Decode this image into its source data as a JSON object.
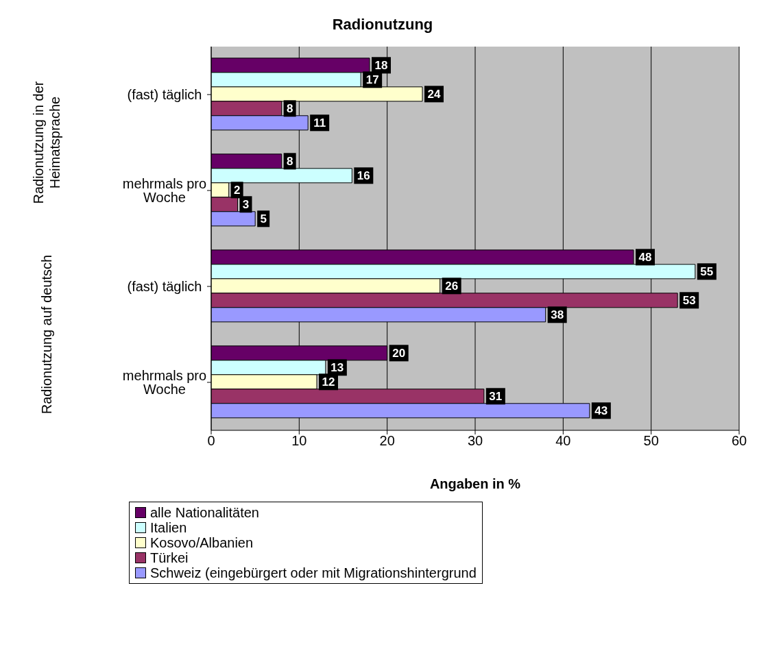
{
  "chart_data": {
    "type": "bar",
    "orientation": "horizontal",
    "title": "Radionutzung",
    "xlabel": "Angaben in %",
    "categories": [
      "(fast) täglich",
      "mehrmals pro Woche",
      "(fast) täglich",
      "mehrmals pro Woche"
    ],
    "annotations": [
      "Radionutzung in der Heimatsprache",
      "Radionutzung auf deutsch"
    ],
    "series": [
      {
        "name": "alle Nationalitäten",
        "color": "#660066",
        "values": [
          18,
          8,
          48,
          20
        ]
      },
      {
        "name": "Italien",
        "color": "#ccffff",
        "values": [
          17,
          16,
          55,
          13
        ]
      },
      {
        "name": "Kosovo/Albanien",
        "color": "#ffffcc",
        "values": [
          24,
          2,
          26,
          12
        ]
      },
      {
        "name": "Türkei",
        "color": "#993366",
        "values": [
          8,
          3,
          53,
          31
        ]
      },
      {
        "name": "Schweiz (eingebürgert oder mit Migrationshintergrund",
        "color": "#9999ff",
        "values": [
          11,
          5,
          38,
          43
        ]
      }
    ],
    "xlim": [
      0,
      60
    ],
    "xticks": [
      0,
      10,
      20,
      30,
      40,
      50,
      60
    ],
    "grid": "x",
    "data_labels": true,
    "legend": "bottom"
  }
}
